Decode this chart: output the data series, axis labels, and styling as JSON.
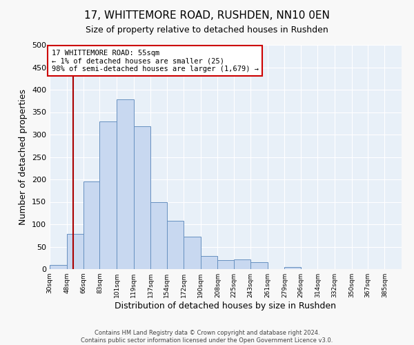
{
  "title": "17, WHITTEMORE ROAD, RUSHDEN, NN10 0EN",
  "subtitle": "Size of property relative to detached houses in Rushden",
  "xlabel": "Distribution of detached houses by size in Rushden",
  "ylabel": "Number of detached properties",
  "bin_labels": [
    "30sqm",
    "48sqm",
    "66sqm",
    "83sqm",
    "101sqm",
    "119sqm",
    "137sqm",
    "154sqm",
    "172sqm",
    "190sqm",
    "208sqm",
    "225sqm",
    "243sqm",
    "261sqm",
    "279sqm",
    "296sqm",
    "314sqm",
    "332sqm",
    "350sqm",
    "367sqm",
    "385sqm"
  ],
  "bin_edges": [
    30,
    48,
    66,
    83,
    101,
    119,
    137,
    154,
    172,
    190,
    208,
    225,
    243,
    261,
    279,
    296,
    314,
    332,
    350,
    367,
    385,
    403
  ],
  "bar_heights": [
    10,
    79,
    196,
    330,
    379,
    318,
    150,
    108,
    72,
    30,
    20,
    22,
    15,
    0,
    5,
    0,
    0,
    0,
    0,
    0,
    0
  ],
  "bar_color": "#c8d8f0",
  "bar_edge_color": "#6690c0",
  "property_value": 55,
  "red_line_color": "#aa0000",
  "annotation_line1": "17 WHITTEMORE ROAD: 55sqm",
  "annotation_line2": "← 1% of detached houses are smaller (25)",
  "annotation_line3": "98% of semi-detached houses are larger (1,679) →",
  "annotation_box_color": "#ffffff",
  "annotation_box_edge_color": "#cc0000",
  "ylim": [
    0,
    500
  ],
  "yticks": [
    0,
    50,
    100,
    150,
    200,
    250,
    300,
    350,
    400,
    450,
    500
  ],
  "footer_line1": "Contains HM Land Registry data © Crown copyright and database right 2024.",
  "footer_line2": "Contains public sector information licensed under the Open Government Licence v3.0.",
  "fig_bg_color": "#f8f8f8",
  "plot_bg_color": "#e8f0f8"
}
